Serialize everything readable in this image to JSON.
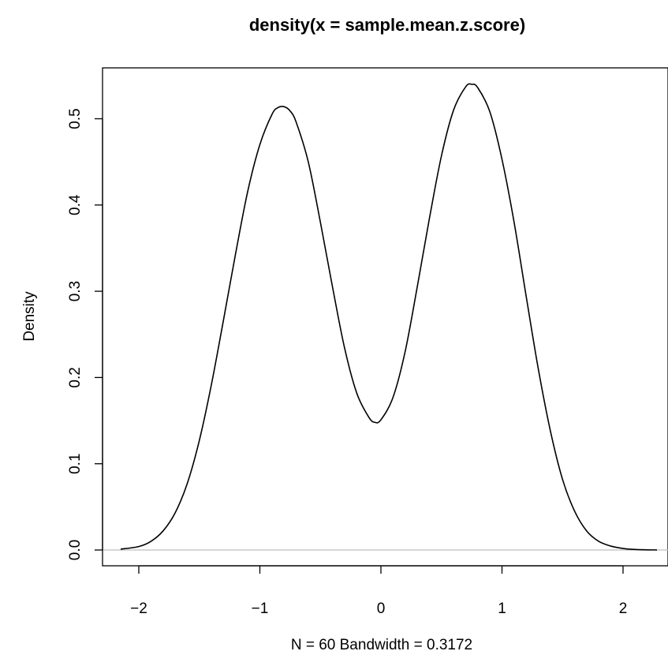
{
  "chart_data": {
    "type": "line",
    "title": "density(x = sample.mean.z.score)",
    "xlabel": "N = 60   Bandwidth = 0.3172",
    "ylabel": "Density",
    "xlim": [
      -2.3,
      2.3
    ],
    "ylim": [
      0.0,
      0.54
    ],
    "x_ticks": [
      -2,
      -1,
      0,
      1,
      2
    ],
    "x_tick_labels": [
      "−2",
      "−1",
      "0",
      "1",
      "2"
    ],
    "y_ticks": [
      0.0,
      0.1,
      0.2,
      0.3,
      0.4,
      0.5
    ],
    "y_tick_labels": [
      "0.0",
      "0.1",
      "0.2",
      "0.3",
      "0.4",
      "0.5"
    ],
    "grid": false,
    "legend": "none",
    "baseline_y": 0.0,
    "colors": {
      "line": "#000000",
      "baseline": "#bebebe",
      "axes": "#000000",
      "background": "#ffffff"
    },
    "series": [
      {
        "x": [
          -2.15,
          -2.0,
          -1.9,
          -1.8,
          -1.7,
          -1.6,
          -1.5,
          -1.4,
          -1.3,
          -1.2,
          -1.1,
          -1.0,
          -0.9,
          -0.85,
          -0.8,
          -0.75,
          -0.7,
          -0.6,
          -0.5,
          -0.4,
          -0.3,
          -0.2,
          -0.1,
          -0.05,
          0.0,
          0.1,
          0.2,
          0.3,
          0.4,
          0.5,
          0.6,
          0.7,
          0.75,
          0.8,
          0.9,
          1.0,
          1.1,
          1.2,
          1.3,
          1.4,
          1.5,
          1.6,
          1.7,
          1.8,
          1.9,
          2.0,
          2.1,
          2.2,
          2.28
        ],
        "y": [
          0.001,
          0.004,
          0.01,
          0.022,
          0.043,
          0.077,
          0.127,
          0.192,
          0.267,
          0.344,
          0.416,
          0.47,
          0.505,
          0.513,
          0.514,
          0.509,
          0.496,
          0.45,
          0.38,
          0.305,
          0.234,
          0.182,
          0.154,
          0.148,
          0.151,
          0.177,
          0.23,
          0.305,
          0.384,
          0.457,
          0.51,
          0.537,
          0.54,
          0.536,
          0.508,
          0.453,
          0.38,
          0.294,
          0.21,
          0.138,
          0.082,
          0.045,
          0.022,
          0.01,
          0.0045,
          0.0018,
          0.0006,
          0.0002,
          0.0001
        ]
      }
    ]
  }
}
